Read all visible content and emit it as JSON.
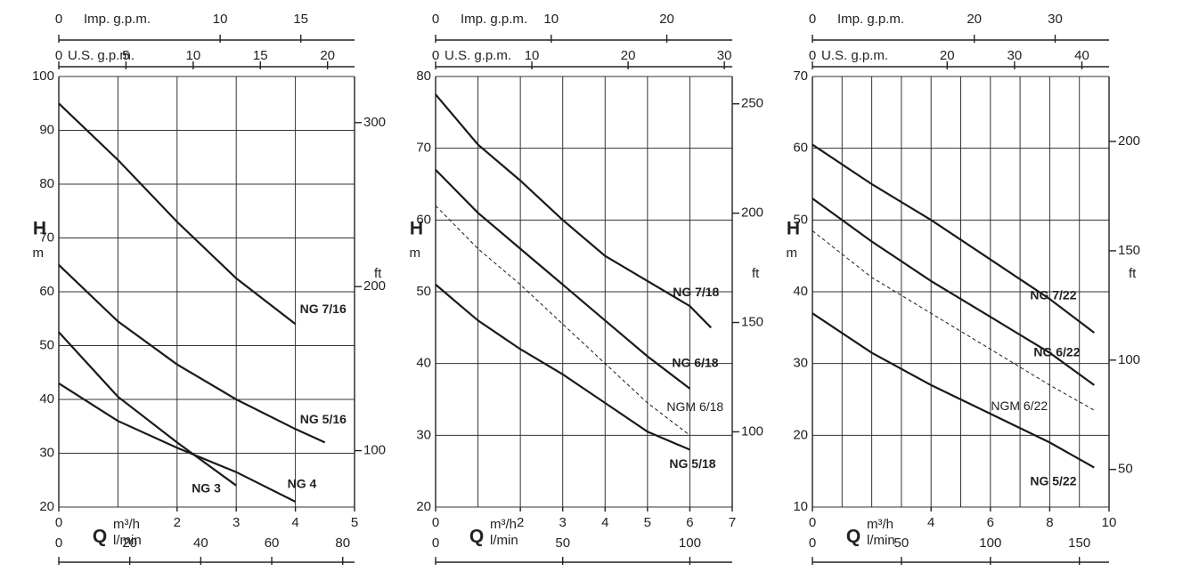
{
  "chart_data": [
    {
      "type": "line",
      "xlabel": "Q",
      "x_unit": "m³/h",
      "ylabel": "H",
      "y_unit": "m",
      "xlim": [
        0,
        5
      ],
      "xticks": [
        0,
        2,
        3,
        4,
        5
      ],
      "xgrid": [
        1,
        2,
        3,
        4
      ],
      "ylim": [
        20,
        100
      ],
      "yticks": [
        20,
        30,
        40,
        50,
        60,
        70,
        80,
        90,
        100
      ],
      "y2label": "ft",
      "y2lim": [
        65.6,
        328.1
      ],
      "y2ticks": [
        100,
        200,
        300
      ],
      "top_axes": [
        {
          "label": "Imp. g.p.m.",
          "lim": [
            0,
            18.33
          ],
          "ticks": [
            0,
            10,
            15
          ]
        },
        {
          "label": "U.S. g.p.m.",
          "lim": [
            0,
            22.01
          ],
          "ticks": [
            0,
            5,
            10,
            15,
            20
          ]
        }
      ],
      "bottom_axis": {
        "label": "l/min",
        "lim": [
          0,
          83.33
        ],
        "ticks": [
          0,
          20,
          40,
          60,
          80
        ]
      },
      "series": [
        {
          "name": "NG 7/16",
          "color": "#1a1a1a",
          "dashed": false,
          "x": [
            0,
            1,
            2,
            3,
            4
          ],
          "values": [
            95,
            84.5,
            73,
            62.5,
            54
          ]
        },
        {
          "name": "NG 5/16",
          "color": "#1a1a1a",
          "dashed": false,
          "x": [
            0,
            1,
            2,
            3,
            4,
            4.5
          ],
          "values": [
            65,
            54.5,
            46.5,
            40,
            34.5,
            32
          ]
        },
        {
          "name": "NG 3",
          "color": "#1a1a1a",
          "dashed": false,
          "x": [
            0,
            1,
            2,
            3
          ],
          "values": [
            52.5,
            40.5,
            32,
            24
          ]
        },
        {
          "name": "NG 4",
          "color": "#1a1a1a",
          "dashed": false,
          "x": [
            0,
            1,
            2,
            3,
            4
          ],
          "values": [
            43,
            36,
            31,
            26.5,
            21
          ]
        }
      ]
    },
    {
      "type": "line",
      "xlabel": "Q",
      "x_unit": "m³/h",
      "ylabel": "H",
      "y_unit": "m",
      "xlim": [
        0,
        7
      ],
      "xticks": [
        0,
        2,
        3,
        4,
        5,
        6,
        7
      ],
      "xgrid": [
        1,
        2,
        3,
        4,
        5,
        6
      ],
      "ylim": [
        20,
        80
      ],
      "yticks": [
        20,
        30,
        40,
        50,
        60,
        70,
        80
      ],
      "y2label": "ft",
      "y2lim": [
        65.6,
        262.5
      ],
      "y2ticks": [
        100,
        150,
        200,
        250
      ],
      "top_axes": [
        {
          "label": "Imp. g.p.m.",
          "lim": [
            0,
            25.66
          ],
          "ticks": [
            0,
            10,
            20
          ]
        },
        {
          "label": "U.S. g.p.m.",
          "lim": [
            0,
            30.82
          ],
          "ticks": [
            0,
            10,
            20,
            30
          ]
        }
      ],
      "bottom_axis": {
        "label": "l/min",
        "lim": [
          0,
          116.67
        ],
        "ticks": [
          0,
          50,
          100
        ]
      },
      "series": [
        {
          "name": "NG 7/18",
          "color": "#1a1a1a",
          "dashed": false,
          "x": [
            0,
            1,
            2,
            3,
            4,
            5,
            6,
            6.5
          ],
          "values": [
            77.5,
            70.5,
            65.5,
            60,
            55,
            51.5,
            48,
            45
          ]
        },
        {
          "name": "NG 6/18",
          "color": "#1a1a1a",
          "dashed": false,
          "x": [
            0,
            1,
            2,
            3,
            4,
            5,
            6
          ],
          "values": [
            67,
            61,
            56,
            51,
            46,
            41,
            36.5
          ]
        },
        {
          "name": "NGM 6/18",
          "color": "#1a1a1a",
          "dashed": true,
          "x": [
            0,
            1,
            2,
            3,
            4,
            5,
            6
          ],
          "values": [
            62,
            56,
            51,
            45.5,
            40,
            34.5,
            30
          ]
        },
        {
          "name": "NG 5/18",
          "color": "#1a1a1a",
          "dashed": false,
          "x": [
            0,
            1,
            2,
            3,
            4,
            5,
            6
          ],
          "values": [
            51,
            46,
            42,
            38.5,
            34.5,
            30.5,
            28
          ]
        }
      ]
    },
    {
      "type": "line",
      "xlabel": "Q",
      "x_unit": "m³/h",
      "ylabel": "H",
      "y_unit": "m",
      "xlim": [
        0,
        10
      ],
      "xticks": [
        0,
        4,
        6,
        8,
        10
      ],
      "xgrid": [
        1,
        2,
        3,
        4,
        5,
        6,
        7,
        8,
        9
      ],
      "ylim": [
        10,
        70
      ],
      "yticks": [
        10,
        20,
        30,
        40,
        50,
        60,
        70
      ],
      "y2label": "ft",
      "y2lim": [
        32.8,
        229.7
      ],
      "y2ticks": [
        50,
        100,
        150,
        200
      ],
      "top_axes": [
        {
          "label": "Imp. g.p.m.",
          "lim": [
            0,
            36.66
          ],
          "ticks": [
            0,
            20,
            30
          ]
        },
        {
          "label": "U.S. g.p.m.",
          "lim": [
            0,
            44.03
          ],
          "ticks": [
            0,
            20,
            30,
            40
          ]
        }
      ],
      "bottom_axis": {
        "label": "l/min",
        "lim": [
          0,
          166.67
        ],
        "ticks": [
          0,
          50,
          100,
          150
        ]
      },
      "series": [
        {
          "name": "NG 7/22",
          "color": "#1a1a1a",
          "dashed": false,
          "x": [
            0,
            2,
            4,
            6,
            8,
            9.5
          ],
          "values": [
            60.5,
            55,
            50,
            44.5,
            39,
            34.3
          ]
        },
        {
          "name": "NG 6/22",
          "color": "#1a1a1a",
          "dashed": false,
          "x": [
            0,
            2,
            4,
            6,
            8,
            9.5
          ],
          "values": [
            53,
            47,
            41.5,
            36.5,
            31.5,
            27
          ]
        },
        {
          "name": "NGM 6/22",
          "color": "#1a1a1a",
          "dashed": true,
          "x": [
            0,
            2,
            4,
            6,
            8,
            9.5
          ],
          "values": [
            48.5,
            42,
            37,
            32,
            27,
            23.5
          ]
        },
        {
          "name": "NG 5/22",
          "color": "#1a1a1a",
          "dashed": false,
          "x": [
            0,
            2,
            4,
            6,
            8,
            9.5
          ],
          "values": [
            37,
            31.5,
            27,
            23,
            19,
            15.5
          ]
        }
      ]
    }
  ]
}
